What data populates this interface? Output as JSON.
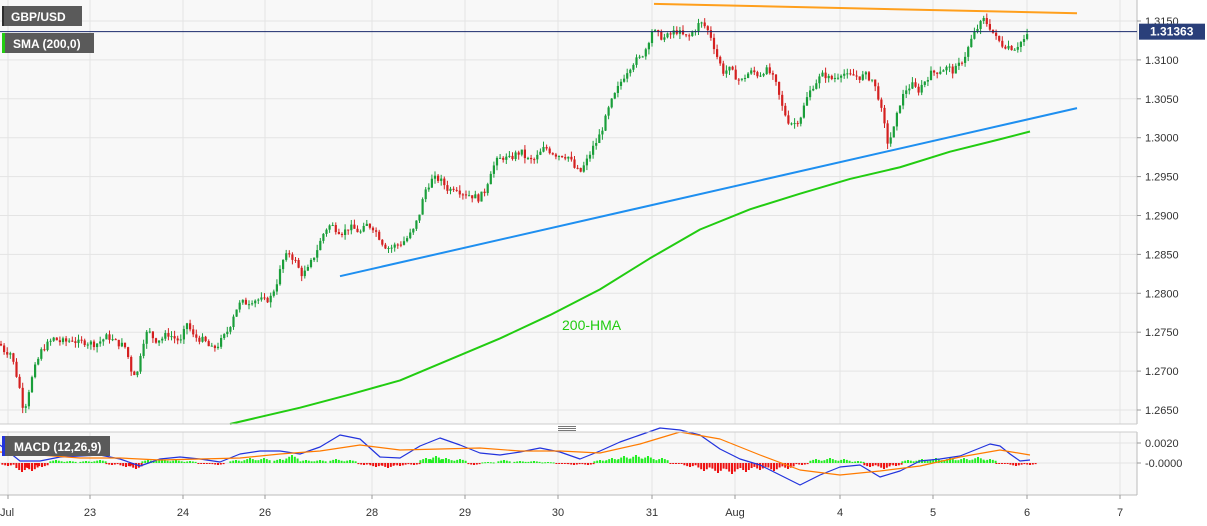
{
  "chart_data": [
    {
      "type": "candlestick",
      "title": "GBP/USD",
      "indicator_label": "SMA (200,0)",
      "current_price": "1.31363",
      "x_tick_labels": [
        "Jul",
        "23",
        "24",
        "26",
        "28",
        "29",
        "30",
        "31",
        "Aug",
        "4",
        "5",
        "6",
        "7"
      ],
      "y_tick_labels": [
        "1.3150",
        "1.3100",
        "1.3050",
        "1.3000",
        "1.2950",
        "1.2900",
        "1.2850",
        "1.2800",
        "1.2750",
        "1.2700",
        "1.2650"
      ],
      "y_ticks": [
        1.315,
        1.31,
        1.305,
        1.3,
        1.295,
        1.29,
        1.285,
        1.28,
        1.275,
        1.27,
        1.265
      ],
      "ylim": [
        1.2632,
        1.3177
      ],
      "candle_anchors": [
        [
          0,
          1.2735
        ],
        [
          5,
          1.2725
        ],
        [
          10,
          1.2725
        ],
        [
          14,
          1.2708
        ],
        [
          19,
          1.2682
        ],
        [
          24,
          1.2648
        ],
        [
          30,
          1.2682
        ],
        [
          36,
          1.2708
        ],
        [
          42,
          1.2728
        ],
        [
          48,
          1.2735
        ],
        [
          54,
          1.2742
        ],
        [
          60,
          1.2738
        ],
        [
          66,
          1.2738
        ],
        [
          72,
          1.2741
        ],
        [
          78,
          1.2736
        ],
        [
          84,
          1.2738
        ],
        [
          90,
          1.2736
        ],
        [
          96,
          1.2735
        ],
        [
          102,
          1.274
        ],
        [
          108,
          1.2745
        ],
        [
          114,
          1.2738
        ],
        [
          120,
          1.2735
        ],
        [
          126,
          1.273
        ],
        [
          131,
          1.2702
        ],
        [
          137,
          1.2695
        ],
        [
          142,
          1.2735
        ],
        [
          148,
          1.2752
        ],
        [
          155,
          1.274
        ],
        [
          162,
          1.2742
        ],
        [
          168,
          1.2748
        ],
        [
          175,
          1.2742
        ],
        [
          181,
          1.2738
        ],
        [
          187,
          1.2762
        ],
        [
          193,
          1.2745
        ],
        [
          199,
          1.2742
        ],
        [
          205,
          1.2738
        ],
        [
          211,
          1.2728
        ],
        [
          217,
          1.2732
        ],
        [
          223,
          1.2742
        ],
        [
          229,
          1.2755
        ],
        [
          235,
          1.2778
        ],
        [
          241,
          1.2788
        ],
        [
          247,
          1.2788
        ],
        [
          253,
          1.2792
        ],
        [
          259,
          1.2792
        ],
        [
          265,
          1.279
        ],
        [
          271,
          1.2795
        ],
        [
          277,
          1.2815
        ],
        [
          283,
          1.2842
        ],
        [
          289,
          1.2852
        ],
        [
          295,
          1.2842
        ],
        [
          301,
          1.2825
        ],
        [
          307,
          1.2828
        ],
        [
          313,
          1.2845
        ],
        [
          319,
          1.2862
        ],
        [
          325,
          1.2882
        ],
        [
          331,
          1.2888
        ],
        [
          337,
          1.2882
        ],
        [
          343,
          1.2878
        ],
        [
          349,
          1.2885
        ],
        [
          355,
          1.2882
        ],
        [
          361,
          1.2878
        ],
        [
          367,
          1.2888
        ],
        [
          373,
          1.2885
        ],
        [
          378,
          1.2875
        ],
        [
          384,
          1.2862
        ],
        [
          390,
          1.2858
        ],
        [
          396,
          1.2862
        ],
        [
          402,
          1.2865
        ],
        [
          408,
          1.2872
        ],
        [
          414,
          1.2882
        ],
        [
          420,
          1.2905
        ],
        [
          425,
          1.2932
        ],
        [
          431,
          1.2945
        ],
        [
          437,
          1.2948
        ],
        [
          443,
          1.2942
        ],
        [
          449,
          1.2932
        ],
        [
          455,
          1.2938
        ],
        [
          461,
          1.293
        ],
        [
          467,
          1.2928
        ],
        [
          473,
          1.2925
        ],
        [
          479,
          1.2922
        ],
        [
          485,
          1.2932
        ],
        [
          491,
          1.2958
        ],
        [
          497,
          1.297
        ],
        [
          503,
          1.2975
        ],
        [
          509,
          1.2972
        ],
        [
          515,
          1.2978
        ],
        [
          521,
          1.2982
        ],
        [
          527,
          1.2972
        ],
        [
          533,
          1.297
        ],
        [
          539,
          1.2978
        ],
        [
          545,
          1.2988
        ],
        [
          551,
          1.2982
        ],
        [
          557,
          1.2978
        ],
        [
          563,
          1.2978
        ],
        [
          569,
          1.2975
        ],
        [
          575,
          1.296
        ],
        [
          580,
          1.2955
        ],
        [
          586,
          1.2968
        ],
        [
          592,
          1.2985
        ],
        [
          598,
          1.2998
        ],
        [
          604,
          1.3018
        ],
        [
          610,
          1.3042
        ],
        [
          616,
          1.3058
        ],
        [
          622,
          1.3075
        ],
        [
          628,
          1.3088
        ],
        [
          634,
          1.3098
        ],
        [
          640,
          1.3102
        ],
        [
          646,
          1.3115
        ],
        [
          652,
          1.3138
        ],
        [
          658,
          1.3132
        ],
        [
          664,
          1.3128
        ],
        [
          670,
          1.3132
        ],
        [
          676,
          1.3138
        ],
        [
          682,
          1.3132
        ],
        [
          688,
          1.3128
        ],
        [
          694,
          1.3138
        ],
        [
          700,
          1.3148
        ],
        [
          706,
          1.3142
        ],
        [
          711,
          1.313
        ],
        [
          717,
          1.3105
        ],
        [
          723,
          1.3085
        ],
        [
          729,
          1.3088
        ],
        [
          735,
          1.308
        ],
        [
          741,
          1.3072
        ],
        [
          747,
          1.3082
        ],
        [
          753,
          1.3085
        ],
        [
          759,
          1.308
        ],
        [
          765,
          1.3088
        ],
        [
          771,
          1.3082
        ],
        [
          776,
          1.3068
        ],
        [
          782,
          1.304
        ],
        [
          788,
          1.3022
        ],
        [
          794,
          1.3018
        ],
        [
          800,
          1.3025
        ],
        [
          806,
          1.3048
        ],
        [
          812,
          1.3065
        ],
        [
          818,
          1.3075
        ],
        [
          824,
          1.3082
        ],
        [
          830,
          1.3075
        ],
        [
          836,
          1.3078
        ],
        [
          842,
          1.3085
        ],
        [
          848,
          1.3078
        ],
        [
          854,
          1.308
        ],
        [
          860,
          1.3078
        ],
        [
          866,
          1.308
        ],
        [
          872,
          1.3075
        ],
        [
          878,
          1.3055
        ],
        [
          884,
          1.3018
        ],
        [
          888,
          1.2992
        ],
        [
          894,
          1.3012
        ],
        [
          900,
          1.3045
        ],
        [
          906,
          1.3062
        ],
        [
          912,
          1.3068
        ],
        [
          918,
          1.306
        ],
        [
          924,
          1.3072
        ],
        [
          930,
          1.3082
        ],
        [
          936,
          1.3085
        ],
        [
          942,
          1.3088
        ],
        [
          948,
          1.309
        ],
        [
          954,
          1.3085
        ],
        [
          960,
          1.3095
        ],
        [
          966,
          1.3108
        ],
        [
          972,
          1.3128
        ],
        [
          978,
          1.3142
        ],
        [
          984,
          1.3152
        ],
        [
          990,
          1.3142
        ],
        [
          996,
          1.3128
        ],
        [
          1002,
          1.312
        ],
        [
          1008,
          1.3118
        ],
        [
          1014,
          1.3115
        ],
        [
          1020,
          1.3122
        ],
        [
          1026,
          1.3128
        ],
        [
          1030,
          1.3136
        ]
      ],
      "lines": [
        {
          "name": "resistance",
          "color": "#ff9f1c",
          "x": [
            654,
            1077
          ],
          "y": [
            1.3172,
            1.316
          ]
        },
        {
          "name": "support",
          "color": "#1e8ff0",
          "x": [
            340,
            1077
          ],
          "y": [
            1.2822,
            1.3038
          ]
        },
        {
          "name": "200-HMA",
          "color": "#22cc11",
          "label": "200-HMA",
          "x": [
            230,
            300,
            350,
            400,
            450,
            500,
            550,
            600,
            650,
            700,
            750,
            800,
            850,
            900,
            950,
            1000,
            1030
          ],
          "y": [
            1.2632,
            1.2653,
            1.267,
            1.2688,
            1.2715,
            1.2742,
            1.2772,
            1.2805,
            1.2845,
            1.2882,
            1.2908,
            1.2928,
            1.2947,
            1.2962,
            1.2982,
            1.2998,
            1.3008
          ]
        }
      ],
      "grid": true
    },
    {
      "type": "macd",
      "title": "MACD (12,26,9)",
      "y_tick_labels": [
        "0.0020",
        "-0.0000"
      ],
      "y_ticks": [
        0.002,
        0.0
      ],
      "ylim": [
        -0.0032,
        0.0031
      ],
      "macd_line": {
        "color": "#2233dd",
        "x": [
          0,
          20,
          40,
          60,
          80,
          100,
          120,
          140,
          160,
          180,
          200,
          220,
          240,
          260,
          280,
          300,
          320,
          340,
          360,
          380,
          400,
          420,
          440,
          460,
          480,
          500,
          520,
          540,
          560,
          580,
          600,
          620,
          640,
          660,
          680,
          700,
          720,
          740,
          760,
          780,
          800,
          820,
          840,
          860,
          880,
          900,
          920,
          940,
          960,
          980,
          990,
          1000,
          1010,
          1020,
          1030
        ],
        "y": [
          0.0018,
          0.0002,
          0.0002,
          0.0006,
          0.0007,
          0.0008,
          0.0004,
          -0.0003,
          0.0004,
          0.0006,
          0.0004,
          0.0001,
          0.0009,
          0.0012,
          0.0012,
          0.0009,
          0.0016,
          0.0028,
          0.0024,
          0.0006,
          0.0005,
          0.0017,
          0.0025,
          0.0018,
          0.001,
          0.0008,
          0.0011,
          0.0015,
          0.0011,
          0.0004,
          0.0012,
          0.0021,
          0.0028,
          0.0035,
          0.0033,
          0.0028,
          0.0014,
          0.0004,
          -0.0002,
          -0.0012,
          -0.0022,
          -0.0012,
          -0.0004,
          -0.0002,
          -0.0014,
          -0.0008,
          0.0002,
          0.0004,
          0.0007,
          0.0015,
          0.0019,
          0.0017,
          0.0009,
          0.0002,
          0.0003
        ]
      },
      "signal_line": {
        "color": "#ff7b00",
        "x": [
          0,
          40,
          80,
          120,
          160,
          200,
          240,
          280,
          320,
          360,
          400,
          440,
          480,
          520,
          560,
          600,
          640,
          680,
          720,
          760,
          800,
          840,
          880,
          920,
          960,
          1000,
          1030
        ],
        "y": [
          0.0011,
          0.0008,
          0.0005,
          0.0005,
          0.0003,
          0.0004,
          0.0005,
          0.0009,
          0.0012,
          0.0018,
          0.0013,
          0.0014,
          0.0015,
          0.0012,
          0.0012,
          0.001,
          0.0019,
          0.0031,
          0.0024,
          0.0008,
          -0.0007,
          -0.0012,
          -0.0008,
          -0.0003,
          0.0006,
          0.0013,
          0.0008
        ]
      },
      "histogram_colors": {
        "positive": "#22ee22",
        "negative": "#ee1111"
      },
      "histogram": [
        [
          8,
          -0.0003
        ],
        [
          22,
          -0.0009
        ],
        [
          32,
          -0.0008
        ],
        [
          42,
          -0.0004
        ],
        [
          56,
          0.0003
        ],
        [
          70,
          0.0002
        ],
        [
          86,
          0.0002
        ],
        [
          100,
          0.0003
        ],
        [
          112,
          -0.0002
        ],
        [
          126,
          -0.0004
        ],
        [
          136,
          -0.0006
        ],
        [
          148,
          0.0003
        ],
        [
          162,
          0.0004
        ],
        [
          176,
          0.0003
        ],
        [
          190,
          0.0002
        ],
        [
          204,
          -0.0001
        ],
        [
          218,
          -0.0002
        ],
        [
          236,
          0.0003
        ],
        [
          250,
          0.0005
        ],
        [
          264,
          0.0005
        ],
        [
          280,
          0.0004
        ],
        [
          292,
          0.0008
        ],
        [
          306,
          0.0003
        ],
        [
          320,
          0.0003
        ],
        [
          336,
          0.0004
        ],
        [
          350,
          0.0003
        ],
        [
          364,
          -0.0002
        ],
        [
          376,
          -0.0004
        ],
        [
          388,
          -0.0005
        ],
        [
          400,
          -0.0003
        ],
        [
          414,
          -0.0002
        ],
        [
          426,
          0.0005
        ],
        [
          436,
          0.0007
        ],
        [
          446,
          0.0005
        ],
        [
          460,
          0.0004
        ],
        [
          474,
          -0.0002
        ],
        [
          488,
          0.0001
        ],
        [
          504,
          0.0003
        ],
        [
          520,
          0.0002
        ],
        [
          534,
          0.0002
        ],
        [
          548,
          0.0001
        ],
        [
          562,
          -0.0001
        ],
        [
          574,
          -0.0002
        ],
        [
          588,
          -0.0002
        ],
        [
          600,
          0.0003
        ],
        [
          612,
          0.0005
        ],
        [
          624,
          0.0007
        ],
        [
          636,
          0.0008
        ],
        [
          648,
          0.0007
        ],
        [
          662,
          0.0005
        ],
        [
          676,
          -0.0001
        ],
        [
          690,
          -0.0004
        ],
        [
          704,
          -0.0008
        ],
        [
          718,
          -0.001
        ],
        [
          732,
          -0.0011
        ],
        [
          746,
          -0.0009
        ],
        [
          760,
          -0.0007
        ],
        [
          774,
          -0.0008
        ],
        [
          788,
          -0.0006
        ],
        [
          802,
          -0.0002
        ],
        [
          816,
          0.0004
        ],
        [
          830,
          0.0005
        ],
        [
          844,
          0.0004
        ],
        [
          858,
          0.0002
        ],
        [
          870,
          -0.0004
        ],
        [
          884,
          -0.0006
        ],
        [
          896,
          -0.0003
        ],
        [
          908,
          0.0003
        ],
        [
          922,
          0.0004
        ],
        [
          936,
          0.0005
        ],
        [
          950,
          0.0005
        ],
        [
          964,
          0.0005
        ],
        [
          978,
          0.0006
        ],
        [
          990,
          0.0004
        ],
        [
          1002,
          -0.0001
        ],
        [
          1016,
          -0.0003
        ],
        [
          1030,
          -0.0002
        ]
      ]
    }
  ]
}
